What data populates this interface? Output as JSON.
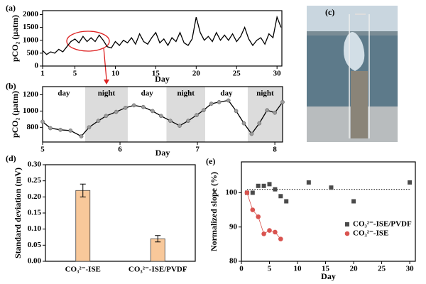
{
  "chart_data": [
    {
      "type": "line",
      "panel_label": "(a)",
      "x_label": "Day",
      "y_label": "pCO₂ (μatm)",
      "color": "#000000",
      "x": [
        1,
        1.5,
        2,
        2.5,
        3,
        3.5,
        4,
        4.5,
        5,
        5.5,
        6,
        6.5,
        7,
        7.5,
        8,
        8.5,
        9,
        9.5,
        10,
        10.5,
        11,
        11.5,
        12,
        12.5,
        13,
        13.5,
        14,
        14.5,
        15,
        15.5,
        16,
        16.5,
        17,
        17.5,
        18,
        18.5,
        19,
        19.5,
        20,
        20.5,
        21,
        21.5,
        22,
        22.5,
        23,
        23.5,
        24,
        24.5,
        25,
        25.5,
        26,
        26.5,
        27,
        27.5,
        28,
        28.5,
        29,
        29.5,
        30,
        30.5
      ],
      "values": [
        600,
        450,
        550,
        500,
        650,
        550,
        750,
        950,
        1050,
        900,
        1150,
        950,
        1100,
        950,
        1200,
        1000,
        750,
        700,
        950,
        800,
        1000,
        900,
        1100,
        850,
        1250,
        950,
        850,
        1100,
        1300,
        900,
        1050,
        800,
        1100,
        950,
        1300,
        900,
        800,
        1050,
        1900,
        1300,
        1000,
        1150,
        950,
        1300,
        1000,
        1200,
        1000,
        1250,
        950,
        1150,
        1500,
        1050,
        800,
        1000,
        1100,
        850,
        1250,
        1100,
        1900,
        1500
      ],
      "xlim": [
        1,
        30.6
      ],
      "xticks": [
        1,
        5,
        10,
        15,
        20,
        25,
        30
      ],
      "ylim": [
        0,
        2150
      ],
      "yticks": [
        0,
        500,
        1000,
        1500,
        2000
      ]
    },
    {
      "type": "line-marker",
      "panel_label": "(b)",
      "x_label": "Day",
      "y_label": "pCO₂ (μatm)",
      "color": "#000000",
      "marker_color": "#9a9a9a",
      "x": [
        5.0,
        5.1,
        5.23,
        5.36,
        5.5,
        5.6,
        5.72,
        5.82,
        5.95,
        6.07,
        6.18,
        6.3,
        6.42,
        6.53,
        6.65,
        6.77,
        6.88,
        6.99,
        7.08,
        7.18,
        7.28,
        7.4,
        7.5,
        7.6,
        7.7,
        7.8,
        7.9,
        8.0,
        8.1
      ],
      "values": [
        870,
        790,
        770,
        760,
        690,
        800,
        880,
        940,
        990,
        1040,
        1070,
        1050,
        1000,
        940,
        880,
        820,
        880,
        950,
        1010,
        1090,
        1110,
        1130,
        1000,
        850,
        720,
        850,
        1010,
        980,
        1110
      ],
      "periods": [
        {
          "label": "day",
          "start": 5,
          "end": 5.55,
          "shaded": false
        },
        {
          "label": "night",
          "start": 5.55,
          "end": 6.1,
          "shaded": true
        },
        {
          "label": "day",
          "start": 6.1,
          "end": 6.6,
          "shaded": false
        },
        {
          "label": "night",
          "start": 6.6,
          "end": 7.1,
          "shaded": true
        },
        {
          "label": "day",
          "start": 7.1,
          "end": 7.65,
          "shaded": false
        },
        {
          "label": "night",
          "start": 7.65,
          "end": 8.1,
          "shaded": true
        }
      ],
      "xlim": [
        5,
        8.1
      ],
      "xticks": [
        5,
        6,
        7,
        8
      ],
      "ylim": [
        620,
        1300
      ],
      "yticks": [
        800,
        1000,
        1200
      ]
    },
    {
      "type": "bar",
      "panel_label": "(d)",
      "y_label": "Standard deviation (mV)",
      "color": "#f8c89a",
      "categories": [
        "CO₃²⁻-ISE",
        "CO₃²⁻-ISE/PVDF"
      ],
      "values": [
        0.22,
        0.07
      ],
      "errors": [
        0.02,
        0.01
      ],
      "ylim": [
        0,
        0.3
      ],
      "yticks": [
        {
          "value": 0,
          "label": "0.00"
        },
        {
          "value": 0.05,
          "label": "0.05"
        },
        {
          "value": 0.1,
          "label": "0.10"
        },
        {
          "value": 0.15,
          "label": "0.15"
        },
        {
          "value": 0.2,
          "label": "0.20"
        },
        {
          "value": 0.25,
          "label": "0.25"
        },
        {
          "value": 0.3,
          "label": "0.30"
        }
      ]
    },
    {
      "type": "scatter",
      "panel_label": "(e)",
      "x_label": "Day",
      "y_label": "Normalized slope (%)",
      "reference_line": 101,
      "series": [
        {
          "name": "CO₃²⁻-ISE/PVDF",
          "color": "#4a4a4a",
          "marker": "square",
          "x": [
            1,
            2,
            3,
            4,
            5,
            6,
            7,
            8,
            12,
            16,
            20,
            30
          ],
          "values": [
            100,
            100,
            102,
            102,
            102.5,
            101,
            99,
            97.5,
            103,
            101.5,
            97.5,
            103
          ]
        },
        {
          "name": "CO₃²⁻-ISE",
          "color": "#d9534f",
          "marker": "circle",
          "x": [
            1,
            2,
            3,
            4,
            5,
            6,
            7
          ],
          "values": [
            100,
            95,
            93,
            88,
            89,
            88.5,
            86.5
          ]
        }
      ],
      "xlim": [
        0,
        31
      ],
      "xticks": [
        0,
        5,
        10,
        15,
        20,
        25,
        30
      ],
      "ylim": [
        80,
        109
      ],
      "yticks": [
        80,
        90,
        100
      ],
      "legend": "lower-right"
    }
  ],
  "photo": {
    "panel_label": "(c)"
  }
}
